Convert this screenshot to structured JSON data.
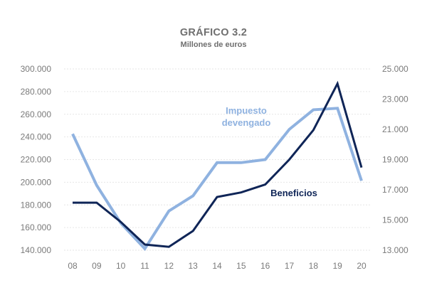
{
  "chart_data": {
    "type": "line",
    "title": "GRÁFICO 3.2",
    "subtitle": "Millones de euros",
    "categories": [
      "08",
      "09",
      "10",
      "11",
      "12",
      "13",
      "14",
      "15",
      "16",
      "17",
      "18",
      "19",
      "20"
    ],
    "y_left": {
      "range": [
        140000,
        300000
      ],
      "ticks": [
        140000,
        160000,
        180000,
        200000,
        220000,
        240000,
        260000,
        280000,
        300000
      ],
      "tick_labels": [
        "140.000",
        "160.000",
        "180.000",
        "200.000",
        "220.000",
        "240.000",
        "260.000",
        "280.000",
        "300.000"
      ]
    },
    "y_right": {
      "range": [
        13000,
        25000
      ],
      "ticks": [
        13000,
        15000,
        17000,
        19000,
        21000,
        23000,
        25000
      ],
      "tick_labels": [
        "13.000",
        "15.000",
        "17.000",
        "19.000",
        "21.000",
        "23.000",
        "25.000"
      ]
    },
    "grid": true,
    "series": [
      {
        "name": "Beneficios",
        "axis": "left",
        "color": "#0f2557",
        "values": [
          182000,
          182000,
          165000,
          145000,
          143000,
          157000,
          187000,
          191000,
          198000,
          220000,
          246000,
          287000,
          213000
        ]
      },
      {
        "name": "Impuesto devengado",
        "name_lines": [
          "Impuesto",
          "devengado"
        ],
        "axis": "right",
        "color": "#8fb2e0",
        "values": [
          20700,
          17300,
          14800,
          13100,
          15600,
          16600,
          18800,
          18800,
          19000,
          21000,
          22300,
          22400,
          17600
        ]
      }
    ]
  }
}
